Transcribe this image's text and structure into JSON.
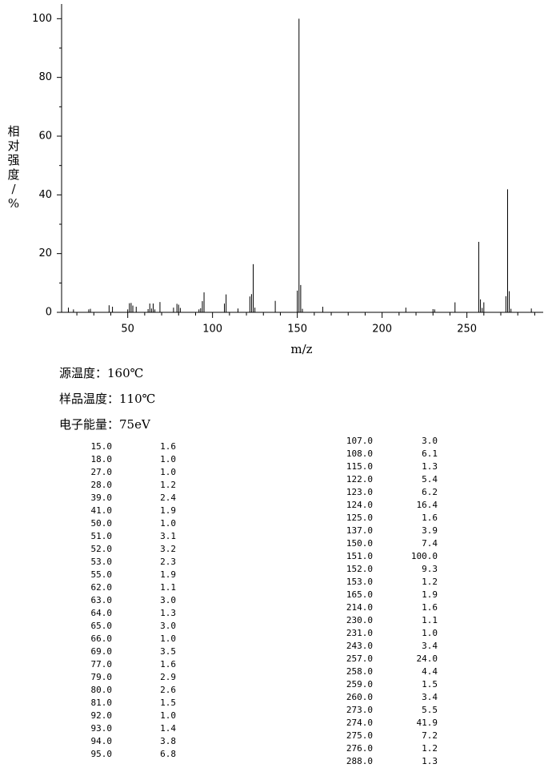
{
  "chart_data": {
    "type": "bar",
    "ylabel": "相对强度/%",
    "xlabel": "m/z",
    "x": [
      15,
      18,
      27,
      28,
      39,
      41,
      50,
      51,
      52,
      53,
      55,
      62,
      63,
      64,
      65,
      66,
      69,
      77,
      79,
      80,
      81,
      92,
      93,
      94,
      95,
      107,
      108,
      115,
      122,
      123,
      124,
      125,
      137,
      150,
      151,
      152,
      153,
      165,
      214,
      230,
      231,
      243,
      257,
      258,
      259,
      260,
      273,
      274,
      275,
      276,
      288
    ],
    "x_labels": [
      "15.0",
      "18.0",
      "27.0",
      "28.0",
      "39.0",
      "41.0",
      "50.0",
      "51.0",
      "52.0",
      "53.0",
      "55.0",
      "62.0",
      "63.0",
      "64.0",
      "65.0",
      "66.0",
      "69.0",
      "77.0",
      "79.0",
      "80.0",
      "81.0",
      "92.0",
      "93.0",
      "94.0",
      "95.0",
      "107.0",
      "108.0",
      "115.0",
      "122.0",
      "123.0",
      "124.0",
      "125.0",
      "137.0",
      "150.0",
      "151.0",
      "152.0",
      "153.0",
      "165.0",
      "214.0",
      "230.0",
      "231.0",
      "243.0",
      "257.0",
      "258.0",
      "259.0",
      "260.0",
      "273.0",
      "274.0",
      "275.0",
      "276.0",
      "288.0"
    ],
    "values": [
      1.6,
      1.0,
      1.0,
      1.2,
      2.4,
      1.9,
      1.0,
      3.1,
      3.2,
      2.3,
      1.9,
      1.1,
      3.0,
      1.3,
      3.0,
      1.0,
      3.5,
      1.6,
      2.9,
      2.6,
      1.5,
      1.0,
      1.4,
      3.8,
      6.8,
      3.0,
      6.1,
      1.3,
      5.4,
      6.2,
      16.4,
      1.6,
      3.9,
      7.4,
      100,
      9.3,
      1.2,
      1.9,
      1.6,
      1.1,
      1.0,
      3.4,
      24,
      4.4,
      1.5,
      3.4,
      5.5,
      41.9,
      7.2,
      1.2,
      1.3
    ],
    "value_labels": [
      "1.6",
      "1.0",
      "1.0",
      "1.2",
      "2.4",
      "1.9",
      "1.0",
      "3.1",
      "3.2",
      "2.3",
      "1.9",
      "1.1",
      "3.0",
      "1.3",
      "3.0",
      "1.0",
      "3.5",
      "1.6",
      "2.9",
      "2.6",
      "1.5",
      "1.0",
      "1.4",
      "3.8",
      "6.8",
      "3.0",
      "6.1",
      "1.3",
      "5.4",
      "6.2",
      "16.4",
      "1.6",
      "3.9",
      "7.4",
      "100.0",
      "9.3",
      "1.2",
      "1.9",
      "1.6",
      "1.1",
      "1.0",
      "3.4",
      "24.0",
      "4.4",
      "1.5",
      "3.4",
      "5.5",
      "41.9",
      "7.2",
      "1.2",
      "1.3"
    ],
    "color": "#000000",
    "xlim": [
      11,
      295
    ],
    "xticks": [
      50,
      100,
      150,
      200,
      250
    ],
    "xminorticks": [
      20,
      30,
      40,
      60,
      70,
      80,
      90,
      110,
      120,
      130,
      140,
      160,
      170,
      180,
      190,
      210,
      220,
      230,
      240,
      260,
      270,
      280,
      290
    ],
    "ylim": [
      0,
      105
    ],
    "yticks": [
      0,
      20,
      40,
      60,
      80,
      100
    ],
    "yminorticks": [
      10,
      30,
      50,
      70,
      90
    ]
  },
  "conditions": [
    "源温度：160℃",
    "样品温度：110℃",
    "电子能量：75eV"
  ]
}
